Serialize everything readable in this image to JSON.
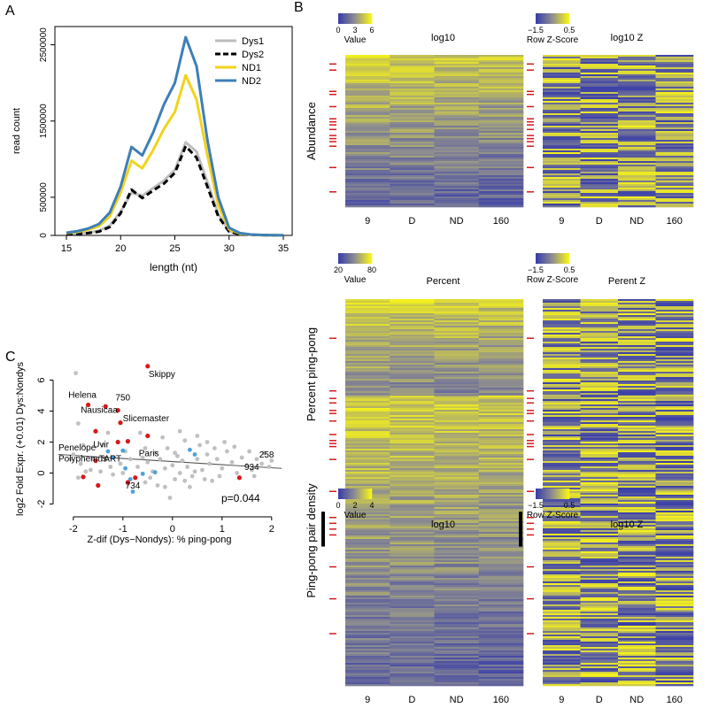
{
  "panel_labels": {
    "a": "A",
    "b": "B",
    "c": "C"
  },
  "chart_data": [
    {
      "id": "A",
      "type": "line",
      "xlabel": "length (nt)",
      "ylabel": "read count",
      "xlim": [
        15,
        35
      ],
      "ylim": [
        0,
        2600000
      ],
      "xticks": [
        15,
        20,
        25,
        30,
        35
      ],
      "yticks": [
        0,
        500000,
        1500000,
        2500000
      ],
      "ytick_labels": [
        "0",
        "500000",
        "1500000",
        "2500000"
      ],
      "legend_position": "top-right",
      "x": [
        15,
        16,
        17,
        18,
        19,
        20,
        21,
        22,
        23,
        24,
        25,
        26,
        27,
        28,
        29,
        30,
        31,
        32,
        33,
        34,
        35
      ],
      "series": [
        {
          "name": "Dys1",
          "color": "#bdbdbd",
          "dash": "solid",
          "values": [
            20000,
            25000,
            35000,
            60000,
            130000,
            310000,
            560000,
            520000,
            620000,
            720000,
            860000,
            1220000,
            1100000,
            700000,
            280000,
            60000,
            20000,
            10000,
            5000,
            3000,
            2000
          ]
        },
        {
          "name": "Dys2",
          "color": "#000000",
          "dash": "dashed",
          "values": [
            15000,
            20000,
            30000,
            50000,
            110000,
            290000,
            600000,
            490000,
            590000,
            680000,
            820000,
            1170000,
            1020000,
            640000,
            250000,
            50000,
            15000,
            8000,
            4000,
            2000,
            1000
          ]
        },
        {
          "name": "ND1",
          "color": "#f2d31b",
          "dash": "solid",
          "values": [
            30000,
            45000,
            75000,
            120000,
            250000,
            560000,
            980000,
            880000,
            1120000,
            1400000,
            1620000,
            2100000,
            1780000,
            1050000,
            400000,
            80000,
            25000,
            10000,
            5000,
            3000,
            2000
          ]
        },
        {
          "name": "ND2",
          "color": "#3d7fb8",
          "dash": "solid",
          "values": [
            35000,
            55000,
            90000,
            150000,
            300000,
            640000,
            1160000,
            1050000,
            1350000,
            1720000,
            2000000,
            2600000,
            2220000,
            1250000,
            500000,
            100000,
            30000,
            12000,
            6000,
            3000,
            2000
          ]
        }
      ]
    },
    {
      "id": "C",
      "type": "scatter",
      "xlabel": "Z-dif (Dys−Nondys): % ping-pong",
      "ylabel": "log2 Fold Expr. (+0.01) Dys:Nondys",
      "xlim": [
        -2.3,
        2.2
      ],
      "ylim": [
        -2.6,
        7.0
      ],
      "xticks": [
        -2,
        -1,
        0,
        1,
        2
      ],
      "yticks": [
        -2,
        0,
        2,
        4,
        6
      ],
      "annotation": "p=0.044",
      "regression": {
        "x": [
          -2.3,
          2.2
        ],
        "y": [
          1.2,
          0.3
        ]
      },
      "colors": {
        "grey": "#c0c0c0",
        "red": "#d7191c",
        "blue": "#4aa3df"
      },
      "labels": [
        {
          "text": "Skippy",
          "x": -0.48,
          "y": 6.2
        },
        {
          "text": "Helena",
          "x": -2.1,
          "y": 4.85
        },
        {
          "text": "750",
          "x": -1.15,
          "y": 4.7
        },
        {
          "text": "Nausicaa",
          "x": -1.85,
          "y": 3.9
        },
        {
          "text": "Slicemaster",
          "x": -1.0,
          "y": 3.35
        },
        {
          "text": "Penelope",
          "x": -2.3,
          "y": 1.45
        },
        {
          "text": "Uvir",
          "x": -1.6,
          "y": 1.65
        },
        {
          "text": "Polyphemus",
          "x": -2.3,
          "y": 0.75
        },
        {
          "text": "TART",
          "x": -1.48,
          "y": 0.75
        },
        {
          "text": "Paris",
          "x": -0.68,
          "y": 1.1
        },
        {
          "text": "734",
          "x": -0.95,
          "y": -1.0
        },
        {
          "text": "934",
          "x": 1.45,
          "y": 0.2
        },
        {
          "text": "258",
          "x": 1.75,
          "y": 1.0
        }
      ],
      "red_points": [
        [
          -0.5,
          6.9
        ],
        [
          -1.7,
          4.4
        ],
        [
          -1.35,
          4.3
        ],
        [
          -1.1,
          4.05
        ],
        [
          -1.05,
          3.25
        ],
        [
          -1.55,
          2.7
        ],
        [
          -0.5,
          2.4
        ],
        [
          -0.9,
          2.05
        ],
        [
          -1.1,
          2.0
        ],
        [
          -1.55,
          0.8
        ],
        [
          -1.8,
          -0.25
        ],
        [
          -1.5,
          -0.8
        ],
        [
          -0.9,
          -0.6
        ],
        [
          -0.75,
          -0.3
        ],
        [
          1.35,
          -0.3
        ]
      ],
      "blue_points": [
        [
          -1.3,
          1.4
        ],
        [
          -1.2,
          1.0
        ],
        [
          -0.95,
          0.3
        ],
        [
          -0.85,
          -0.4
        ],
        [
          -0.6,
          -0.05
        ],
        [
          -0.35,
          0.05
        ],
        [
          -0.8,
          -1.2
        ],
        [
          0.35,
          1.5
        ],
        [
          0.45,
          1.2
        ],
        [
          -1.0,
          1.45
        ]
      ],
      "grey_points": [
        [
          -1.95,
          6.45
        ],
        [
          -1.9,
          3.2
        ],
        [
          -1.8,
          1.8
        ],
        [
          -2.0,
          1.2
        ],
        [
          -1.85,
          0.6
        ],
        [
          -1.65,
          0.2
        ],
        [
          -1.45,
          0.1
        ],
        [
          -1.2,
          -0.1
        ],
        [
          -1.05,
          0.6
        ],
        [
          -0.95,
          1.4
        ],
        [
          -0.85,
          0.9
        ],
        [
          -0.7,
          0.4
        ],
        [
          -0.6,
          1.0
        ],
        [
          -0.5,
          0.7
        ],
        [
          -0.45,
          -0.3
        ],
        [
          -0.35,
          1.3
        ],
        [
          -0.25,
          0.9
        ],
        [
          -0.15,
          0.3
        ],
        [
          -0.1,
          1.6
        ],
        [
          0.0,
          0.5
        ],
        [
          0.05,
          -0.4
        ],
        [
          0.1,
          1.1
        ],
        [
          0.15,
          0.0
        ],
        [
          0.2,
          0.8
        ],
        [
          0.25,
          2.1
        ],
        [
          0.3,
          0.4
        ],
        [
          0.4,
          -0.2
        ],
        [
          0.5,
          0.9
        ],
        [
          0.55,
          1.8
        ],
        [
          0.6,
          0.2
        ],
        [
          0.7,
          1.2
        ],
        [
          0.75,
          0.6
        ],
        [
          0.8,
          -0.5
        ],
        [
          0.85,
          1.6
        ],
        [
          0.9,
          0.9
        ],
        [
          1.0,
          0.3
        ],
        [
          1.1,
          1.4
        ],
        [
          1.2,
          0.7
        ],
        [
          1.3,
          0.0
        ],
        [
          1.4,
          1.0
        ],
        [
          1.5,
          0.5
        ],
        [
          1.6,
          0.2
        ],
        [
          1.7,
          0.9
        ],
        [
          1.85,
          1.3
        ],
        [
          1.95,
          0.4
        ],
        [
          2.0,
          0.8
        ],
        [
          -0.3,
          -0.8
        ],
        [
          -0.05,
          -1.6
        ],
        [
          0.35,
          -0.9
        ],
        [
          0.65,
          -0.4
        ],
        [
          -1.25,
          0.4
        ],
        [
          -1.6,
          0.9
        ],
        [
          -1.75,
          0.1
        ],
        [
          -0.55,
          1.6
        ],
        [
          -0.2,
          2.3
        ],
        [
          0.15,
          2.7
        ],
        [
          0.5,
          2.4
        ],
        [
          1.05,
          2.0
        ],
        [
          -1.4,
          1.8
        ],
        [
          -1.9,
          -0.3
        ],
        [
          -2.05,
          0.9
        ],
        [
          -0.15,
          -0.9
        ],
        [
          0.95,
          -0.2
        ],
        [
          1.25,
          1.7
        ],
        [
          1.55,
          1.4
        ],
        [
          -0.65,
          2.6
        ],
        [
          -1.3,
          2.6
        ],
        [
          0.05,
          1.3
        ],
        [
          -0.4,
          0.1
        ],
        [
          0.45,
          0.1
        ],
        [
          0.25,
          -0.5
        ],
        [
          -0.9,
          -0.7
        ],
        [
          1.65,
          -0.2
        ],
        [
          1.8,
          0.6
        ],
        [
          0.7,
          2.0
        ],
        [
          -1.0,
          0.0
        ],
        [
          -0.55,
          -0.6
        ]
      ]
    },
    {
      "id": "B",
      "type": "heatmap",
      "row_titles": [
        "Abundance",
        "Percent ping-pong",
        "Ping-pong pair density"
      ],
      "heatmaps": [
        {
          "key_title": "Value",
          "key_ticks": [
            "0",
            "3",
            "6"
          ],
          "title": "log10",
          "columns": [
            "9",
            "D",
            "ND",
            "160"
          ],
          "mode": "value",
          "seed": 11
        },
        {
          "key_title": "Row Z-Score",
          "key_ticks": [
            "−1.5",
            "0.5"
          ],
          "title": "log10 Z",
          "columns": [
            "9",
            "D",
            "ND",
            "160"
          ],
          "mode": "z",
          "seed": 23
        },
        {
          "key_title": "Value",
          "key_ticks": [
            "20",
            "80"
          ],
          "title": "Percent",
          "columns": [
            "9",
            "D",
            "ND",
            "160"
          ],
          "mode": "value",
          "seed": 37
        },
        {
          "key_title": "Row Z-Score",
          "key_ticks": [
            "−1.5",
            "0.5"
          ],
          "title": "Perent Z",
          "columns": [
            "9",
            "D",
            "ND",
            "160"
          ],
          "mode": "z",
          "seed": 41
        },
        {
          "key_title": "Value",
          "key_ticks": [
            "0",
            "2",
            "4"
          ],
          "title": "log10",
          "columns": [
            "9",
            "D",
            "ND",
            "160"
          ],
          "mode": "value",
          "seed": 53
        },
        {
          "key_title": "Row Z-Score",
          "key_ticks": [
            "−1.5",
            "0.5"
          ],
          "title": "log10 Z",
          "columns": [
            "9",
            "D",
            "ND",
            "160"
          ],
          "mode": "z",
          "seed": 67
        }
      ],
      "colors": {
        "low": "#3b3fa8",
        "mid": "#8f8f8f",
        "high": "#f6f21a",
        "marker": "#d7191c",
        "bar": "#000000"
      },
      "marker_rows": [
        [
          0.06,
          0.1,
          0.24,
          0.26,
          0.34,
          0.42,
          0.44,
          0.46,
          0.49,
          0.53,
          0.55,
          0.57,
          0.6,
          0.74,
          0.9
        ],
        [
          0.26,
          0.61,
          0.66,
          0.69,
          0.74,
          0.76,
          0.81,
          0.9,
          0.94,
          0.96,
          0.98
        ],
        [
          0.22,
          0.33,
          0.42,
          0.44,
          0.46,
          0.48,
          0.59,
          0.7,
          0.82
        ]
      ],
      "bar_range": [
        0.4,
        0.52
      ]
    }
  ]
}
